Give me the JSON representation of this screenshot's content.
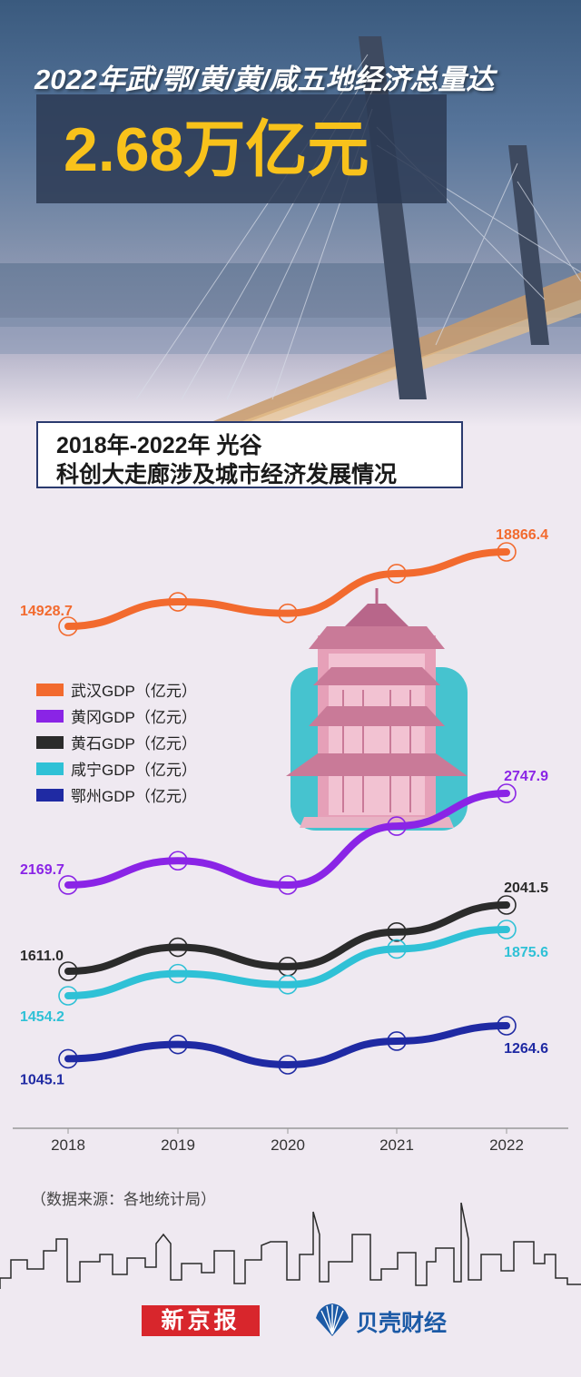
{
  "headline": "2022年武/鄂/黄/黄/咸五地经济总量达",
  "total_value": "2.68万亿元",
  "subtitle_line1": "2018年-2022年 光谷",
  "subtitle_line2": "科创大走廊涉及城市经济发展情况",
  "source_note": "（数据来源：各地统计局）",
  "logos": {
    "xinjingbao": "新京报",
    "beike": "贝壳财经"
  },
  "colors": {
    "wuhan": "#f26a2e",
    "huanggang": "#8a24e6",
    "huangshi": "#2b2b2b",
    "xianning": "#2fc1d6",
    "ezhou": "#1f2aa3",
    "gold": "#f8c21b"
  },
  "chart_data": {
    "type": "line",
    "categories": [
      "2018",
      "2019",
      "2020",
      "2021",
      "2022"
    ],
    "series": [
      {
        "name": "武汉GDP（亿元）",
        "values": [
          14928.7,
          16223.2,
          15616.1,
          17716.8,
          18866.4
        ],
        "first_label": "14928.7",
        "last_label": "18866.4"
      },
      {
        "name": "黄冈GDP（亿元）",
        "values": [
          2169.7,
          2322.7,
          2169.6,
          2541.3,
          2747.9
        ],
        "first_label": "2169.7",
        "last_label": "2747.9"
      },
      {
        "name": "黄石GDP（亿元）",
        "values": [
          1611.0,
          1767.2,
          1641.3,
          1865.7,
          2041.5
        ],
        "first_label": "1611.0",
        "last_label": "2041.5"
      },
      {
        "name": "咸宁GDP（亿元）",
        "values": [
          1454.2,
          1594.9,
          1524.7,
          1751.8,
          1875.6
        ],
        "first_label": "1454.2",
        "last_label": "1875.6"
      },
      {
        "name": "鄂州GDP（亿元）",
        "values": [
          1045.1,
          1140.1,
          1005.3,
          1162.3,
          1264.6
        ],
        "first_label": "1045.1",
        "last_label": "1264.6"
      }
    ],
    "legend_position": "left",
    "grid": false
  }
}
